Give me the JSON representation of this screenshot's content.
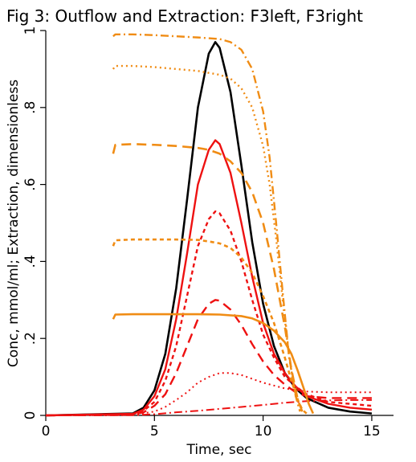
{
  "chart_data": {
    "type": "line",
    "title": "Fig 3: Outflow  and Extraction: F3left, F3right",
    "xlabel": "Time, sec",
    "ylabel": "Conc, mmol/ml; Extraction, dimensionless",
    "xlim": [
      0,
      16
    ],
    "ylim": [
      0,
      1
    ],
    "xticks": [
      0,
      5,
      10,
      15
    ],
    "xtick_labels": [
      "0",
      "5",
      "10",
      "15"
    ],
    "yticks": [
      0,
      0.2,
      0.4,
      0.6,
      0.8,
      1
    ],
    "ytick_labels": [
      "0",
      ".2",
      ".4",
      ".6",
      ".8",
      "1"
    ],
    "grid": false,
    "legend": "none",
    "colors": {
      "black": "#000000",
      "red": "#ee1111",
      "orange": "#f08c14"
    },
    "series": [
      {
        "color": "#000000",
        "dash": "solid",
        "width": 2.6,
        "x": [
          0,
          4,
          4.5,
          5,
          5.5,
          6,
          6.5,
          7,
          7.5,
          7.8,
          8,
          8.5,
          9,
          9.5,
          10,
          10.5,
          11,
          11.5,
          12,
          13,
          14,
          15
        ],
        "y": [
          0,
          0.005,
          0.02,
          0.065,
          0.16,
          0.33,
          0.56,
          0.8,
          0.94,
          0.97,
          0.955,
          0.84,
          0.65,
          0.45,
          0.29,
          0.18,
          0.11,
          0.07,
          0.045,
          0.02,
          0.01,
          0.005
        ]
      },
      {
        "color": "#ee1111",
        "dash": "solid",
        "width": 2.4,
        "x": [
          0,
          4,
          4.5,
          5,
          5.5,
          6,
          6.5,
          7,
          7.5,
          7.8,
          8,
          8.5,
          9,
          9.5,
          10,
          10.5,
          11,
          11.5,
          12,
          13,
          14,
          15
        ],
        "y": [
          0,
          0.004,
          0.015,
          0.05,
          0.12,
          0.25,
          0.42,
          0.6,
          0.69,
          0.715,
          0.705,
          0.63,
          0.5,
          0.36,
          0.24,
          0.16,
          0.11,
          0.075,
          0.05,
          0.03,
          0.02,
          0.015
        ]
      },
      {
        "color": "#ee1111",
        "dash": "dense",
        "width": 2.4,
        "x": [
          0,
          4,
          4.5,
          5,
          5.5,
          6,
          6.5,
          7,
          7.5,
          7.8,
          8,
          8.5,
          9,
          9.5,
          10,
          10.5,
          11,
          11.5,
          12,
          13,
          14,
          15
        ],
        "y": [
          0,
          0.003,
          0.012,
          0.035,
          0.09,
          0.18,
          0.31,
          0.44,
          0.51,
          0.53,
          0.525,
          0.48,
          0.4,
          0.3,
          0.21,
          0.15,
          0.1,
          0.075,
          0.055,
          0.035,
          0.03,
          0.025
        ]
      },
      {
        "color": "#ee1111",
        "dash": "long",
        "width": 2.4,
        "x": [
          0,
          4,
          4.5,
          5,
          5.5,
          6,
          6.5,
          7,
          7.5,
          7.8,
          8,
          8.5,
          9,
          9.5,
          10,
          10.5,
          11,
          11.5,
          12,
          13,
          14,
          15
        ],
        "y": [
          0,
          0.002,
          0.008,
          0.025,
          0.055,
          0.11,
          0.18,
          0.25,
          0.29,
          0.3,
          0.298,
          0.275,
          0.235,
          0.185,
          0.14,
          0.105,
          0.08,
          0.06,
          0.05,
          0.045,
          0.045,
          0.045
        ]
      },
      {
        "color": "#ee1111",
        "dash": "dot",
        "width": 2.0,
        "x": [
          0,
          4,
          5,
          5.5,
          6,
          6.5,
          7,
          7.5,
          8,
          8.5,
          9,
          9.5,
          10,
          11,
          12,
          13,
          14,
          15
        ],
        "y": [
          0,
          0.001,
          0.01,
          0.022,
          0.04,
          0.06,
          0.085,
          0.1,
          0.11,
          0.11,
          0.105,
          0.095,
          0.085,
          0.07,
          0.062,
          0.06,
          0.06,
          0.06
        ]
      },
      {
        "color": "#ee1111",
        "dash": "dashdot",
        "width": 2.0,
        "x": [
          0,
          4,
          5,
          6,
          7,
          8,
          9,
          10,
          11,
          12,
          13,
          14,
          15
        ],
        "y": [
          0,
          0.0005,
          0.003,
          0.008,
          0.012,
          0.017,
          0.022,
          0.027,
          0.033,
          0.037,
          0.039,
          0.04,
          0.04
        ]
      },
      {
        "color": "#f08c14",
        "dash": "solid",
        "width": 2.6,
        "x": [
          3.1,
          3.2,
          4,
          5,
          6,
          7,
          8,
          9,
          9.5,
          10,
          10.5,
          11,
          11.3,
          11.6,
          11.9,
          12.1,
          12.3
        ],
        "y": [
          0.25,
          0.262,
          0.263,
          0.263,
          0.263,
          0.263,
          0.262,
          0.258,
          0.252,
          0.24,
          0.22,
          0.19,
          0.16,
          0.115,
          0.065,
          0.03,
          0.005
        ]
      },
      {
        "color": "#f08c14",
        "dash": "dense",
        "width": 2.6,
        "x": [
          3.1,
          3.2,
          4,
          5,
          6,
          7,
          7.5,
          8,
          8.5,
          9,
          9.5,
          10,
          10.5,
          11,
          11.3,
          11.6,
          11.8,
          12
        ],
        "y": [
          0.44,
          0.455,
          0.457,
          0.457,
          0.457,
          0.456,
          0.452,
          0.447,
          0.435,
          0.41,
          0.37,
          0.31,
          0.24,
          0.15,
          0.09,
          0.04,
          0.015,
          0.005
        ]
      },
      {
        "color": "#f08c14",
        "dash": "long",
        "width": 2.6,
        "x": [
          3.1,
          3.2,
          4,
          5,
          6,
          7,
          7.5,
          8,
          8.5,
          9,
          9.5,
          10,
          10.5,
          11,
          11.3,
          11.6,
          11.8
        ],
        "y": [
          0.68,
          0.703,
          0.705,
          0.703,
          0.7,
          0.695,
          0.69,
          0.68,
          0.66,
          0.63,
          0.58,
          0.5,
          0.38,
          0.23,
          0.12,
          0.04,
          0.01
        ]
      },
      {
        "color": "#f08c14",
        "dash": "dot",
        "width": 2.4,
        "x": [
          3.1,
          3.2,
          4,
          5,
          6,
          7,
          8,
          8.5,
          9,
          9.5,
          10,
          10.3,
          10.6,
          10.9,
          11.2,
          11.5,
          11.7
        ],
        "y": [
          0.9,
          0.908,
          0.908,
          0.905,
          0.9,
          0.895,
          0.885,
          0.875,
          0.85,
          0.8,
          0.7,
          0.6,
          0.46,
          0.3,
          0.15,
          0.05,
          0.01
        ]
      },
      {
        "color": "#f08c14",
        "dash": "dashdot",
        "width": 2.4,
        "x": [
          3.1,
          3.2,
          4,
          5,
          6,
          7,
          8,
          8.5,
          9,
          9.5,
          10,
          10.3,
          10.6,
          10.9,
          11.2,
          11.5,
          11.7
        ],
        "y": [
          0.985,
          0.99,
          0.99,
          0.988,
          0.985,
          0.982,
          0.978,
          0.97,
          0.95,
          0.9,
          0.79,
          0.67,
          0.5,
          0.32,
          0.15,
          0.05,
          0.01
        ]
      }
    ]
  }
}
